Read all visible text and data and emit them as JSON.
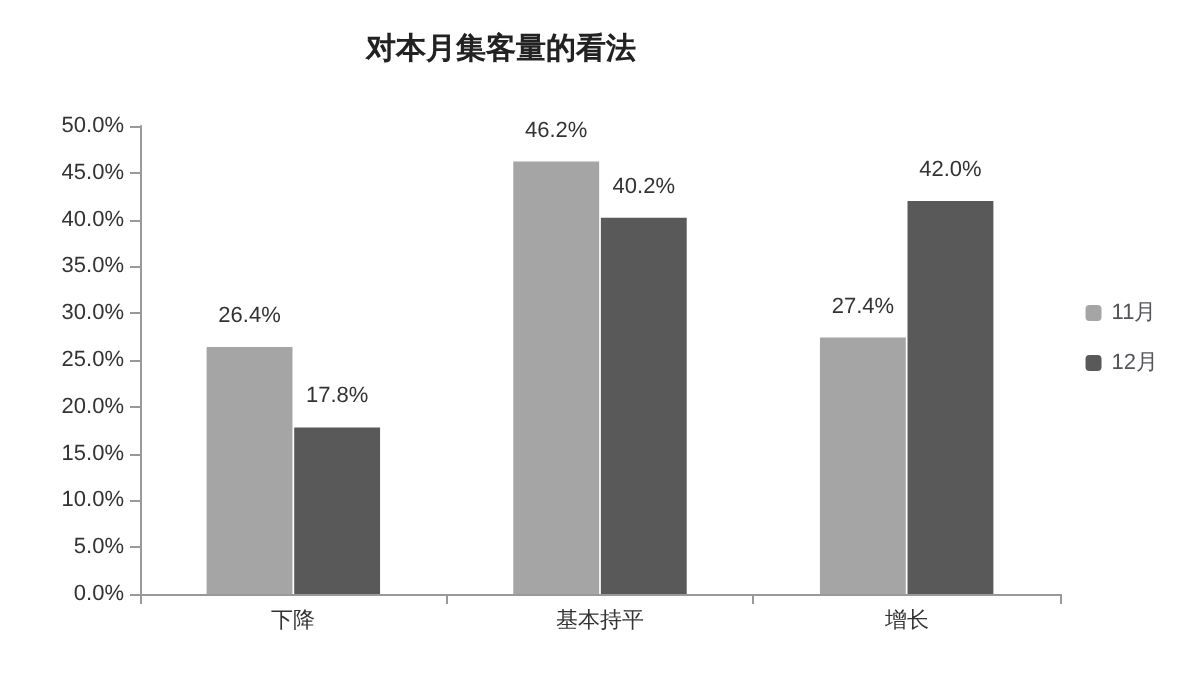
{
  "chart_data": {
    "type": "bar",
    "title": "对本月集客量的看法",
    "categories": [
      "下降",
      "基本持平",
      "增长"
    ],
    "series": [
      {
        "name": "11月",
        "color": "#a5a5a5",
        "values": [
          26.4,
          46.2,
          27.4
        ],
        "value_labels": [
          "26.4%",
          "46.2%",
          "27.4%"
        ]
      },
      {
        "name": "12月",
        "color": "#595959",
        "values": [
          17.8,
          40.2,
          42.0
        ],
        "value_labels": [
          "17.8%",
          "40.2%",
          "42.0%"
        ]
      }
    ],
    "ylim": [
      0,
      50
    ],
    "yticks": [
      {
        "value": 0,
        "label": "0.0%"
      },
      {
        "value": 5,
        "label": "5.0%"
      },
      {
        "value": 10,
        "label": "10.0%"
      },
      {
        "value": 15,
        "label": "15.0%"
      },
      {
        "value": 20,
        "label": "20.0%"
      },
      {
        "value": 25,
        "label": "25.0%"
      },
      {
        "value": 30,
        "label": "30.0%"
      },
      {
        "value": 35,
        "label": "35.0%"
      },
      {
        "value": 40,
        "label": "40.0%"
      },
      {
        "value": 45,
        "label": "45.0%"
      },
      {
        "value": 50,
        "label": "50.0%"
      }
    ],
    "grid": false,
    "legend": "right"
  }
}
